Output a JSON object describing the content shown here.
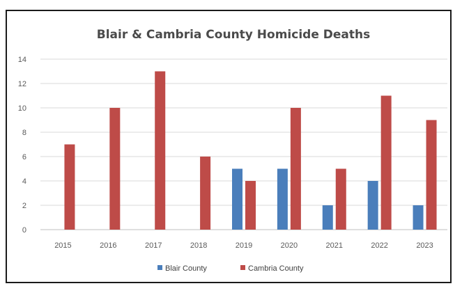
{
  "chart_data": {
    "type": "bar",
    "title": "Blair & Cambria County Homicide Deaths",
    "categories": [
      "2015",
      "2016",
      "2017",
      "2018",
      "2019",
      "2020",
      "2021",
      "2022",
      "2023"
    ],
    "series": [
      {
        "name": "Blair County",
        "color": "#4a7ebb",
        "values": [
          0,
          0,
          0,
          0,
          5,
          5,
          2,
          4,
          2
        ]
      },
      {
        "name": "Cambria County",
        "color": "#be4b48",
        "values": [
          7,
          10,
          13,
          6,
          4,
          10,
          5,
          11,
          9
        ]
      }
    ],
    "ylim": [
      0,
      14
    ],
    "yticks": [
      "0",
      "2",
      "4",
      "6",
      "8",
      "10",
      "12",
      "14"
    ],
    "grid": true,
    "legend": "bottom-center"
  }
}
